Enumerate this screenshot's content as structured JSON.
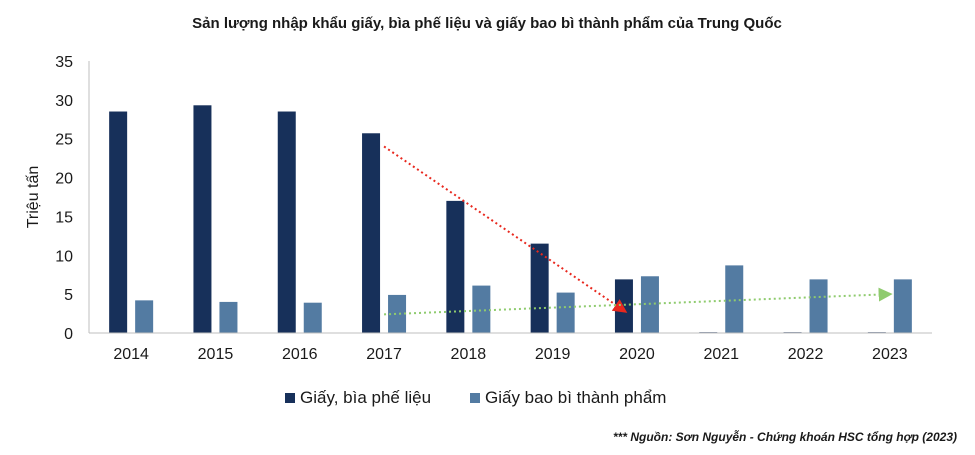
{
  "chart_data": {
    "type": "bar",
    "title": "Sản lượng nhập khẩu giấy, bìa phế liệu và giấy bao bì thành phẩm của Trung Quốc",
    "ylabel": "Triệu tấn",
    "xlabel": "",
    "categories": [
      "2014",
      "2015",
      "2016",
      "2017",
      "2018",
      "2019",
      "2020",
      "2021",
      "2022",
      "2023"
    ],
    "series": [
      {
        "name": "Giấy, bìa phế liệu",
        "color": "#17305a",
        "values": [
          28.5,
          29.3,
          28.5,
          25.7,
          17.0,
          11.5,
          6.9,
          0.1,
          0.1,
          0.1
        ]
      },
      {
        "name": "Giấy bao bì thành phẩm",
        "color": "#537ba2",
        "values": [
          4.2,
          4.0,
          3.9,
          4.9,
          6.1,
          5.2,
          7.3,
          8.7,
          6.9,
          6.9
        ]
      }
    ],
    "ylim": [
      0,
      35
    ],
    "yticks": [
      0,
      5,
      10,
      15,
      20,
      25,
      30,
      35
    ],
    "grid": false,
    "legend_position": "bottom",
    "trend_lines": [
      {
        "color": "#e8281e",
        "from": [
          "2017",
          24
        ],
        "to": [
          "2020",
          2.8
        ]
      },
      {
        "color": "#8fcb6e",
        "from": [
          "2017",
          2.4
        ],
        "to": [
          "2023",
          5
        ]
      }
    ]
  },
  "source_note": "*** Nguồn: Sơn Nguyễn - Chứng khoán HSC tổng hợp (2023)"
}
